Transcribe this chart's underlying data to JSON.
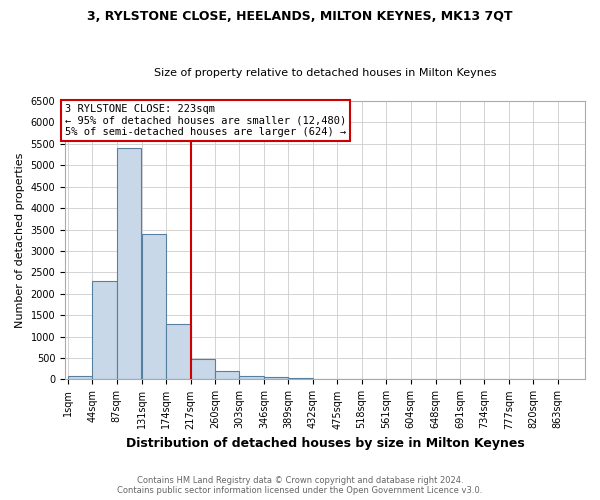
{
  "title": "3, RYLSTONE CLOSE, HEELANDS, MILTON KEYNES, MK13 7QT",
  "subtitle": "Size of property relative to detached houses in Milton Keynes",
  "xlabel": "Distribution of detached houses by size in Milton Keynes",
  "ylabel": "Number of detached properties",
  "bin_labels": [
    "1sqm",
    "44sqm",
    "87sqm",
    "131sqm",
    "174sqm",
    "217sqm",
    "260sqm",
    "303sqm",
    "346sqm",
    "389sqm",
    "432sqm",
    "475sqm",
    "518sqm",
    "561sqm",
    "604sqm",
    "648sqm",
    "691sqm",
    "734sqm",
    "777sqm",
    "820sqm",
    "863sqm"
  ],
  "bin_edges": [
    1,
    44,
    87,
    131,
    174,
    217,
    260,
    303,
    346,
    389,
    432,
    475,
    518,
    561,
    604,
    648,
    691,
    734,
    777,
    820,
    863
  ],
  "bar_heights": [
    75,
    2300,
    5400,
    3400,
    1300,
    470,
    195,
    90,
    55,
    30,
    10,
    0,
    0,
    0,
    0,
    0,
    0,
    0,
    0,
    0
  ],
  "bar_color": "#c8d8e8",
  "bar_edge_color": "#5580a0",
  "vline_x": 217,
  "vline_color": "#cc0000",
  "ylim": [
    0,
    6500
  ],
  "yticks": [
    0,
    500,
    1000,
    1500,
    2000,
    2500,
    3000,
    3500,
    4000,
    4500,
    5000,
    5500,
    6000,
    6500
  ],
  "annotation_line1": "3 RYLSTONE CLOSE: 223sqm",
  "annotation_line2": "← 95% of detached houses are smaller (12,480)",
  "annotation_line3": "5% of semi-detached houses are larger (624) →",
  "annotation_box_color": "#ffffff",
  "annotation_box_edge": "#cc0000",
  "footer_line1": "Contains HM Land Registry data © Crown copyright and database right 2024.",
  "footer_line2": "Contains public sector information licensed under the Open Government Licence v3.0.",
  "background_color": "#ffffff",
  "grid_color": "#cccccc",
  "title_fontsize": 9,
  "subtitle_fontsize": 8,
  "ylabel_fontsize": 8,
  "xlabel_fontsize": 9,
  "tick_fontsize": 7,
  "footer_fontsize": 6
}
